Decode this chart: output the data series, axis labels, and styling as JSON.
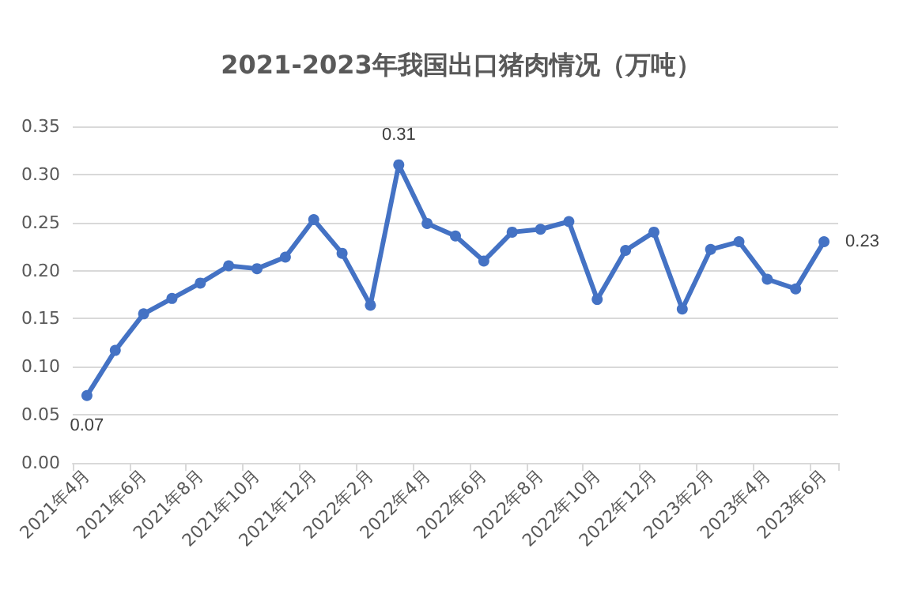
{
  "chart_data": {
    "type": "line",
    "title": "2021-2023年我国出口猪肉情况（万吨）",
    "categories": [
      "2021年4月",
      null,
      "2021年6月",
      null,
      "2021年8月",
      null,
      "2021年10月",
      null,
      "2021年12月",
      null,
      "2022年2月",
      null,
      "2022年4月",
      null,
      "2022年6月",
      null,
      "2022年8月",
      null,
      "2022年10月",
      null,
      "2022年12月",
      null,
      "2023年2月",
      null,
      "2023年4月",
      null,
      "2023年6月"
    ],
    "values": [
      0.07,
      0.117,
      0.155,
      0.171,
      0.187,
      0.205,
      0.202,
      0.214,
      0.253,
      0.218,
      0.164,
      0.31,
      0.249,
      0.236,
      0.21,
      0.24,
      0.243,
      0.251,
      0.17,
      0.221,
      0.24,
      0.16,
      0.222,
      0.23,
      0.191,
      0.181,
      0.23
    ],
    "value_labels": [
      "0.07",
      null,
      null,
      null,
      null,
      null,
      null,
      null,
      null,
      null,
      null,
      "0.31",
      null,
      null,
      null,
      null,
      null,
      null,
      null,
      null,
      null,
      null,
      null,
      null,
      null,
      null,
      "0.23"
    ],
    "color": "#4472c4",
    "ylim": [
      0,
      0.35
    ],
    "yticks": [
      "0.00",
      "0.05",
      "0.10",
      "0.15",
      "0.20",
      "0.25",
      "0.30",
      "0.35"
    ],
    "grid": "y",
    "marker": "circle",
    "line_style": "solid"
  }
}
